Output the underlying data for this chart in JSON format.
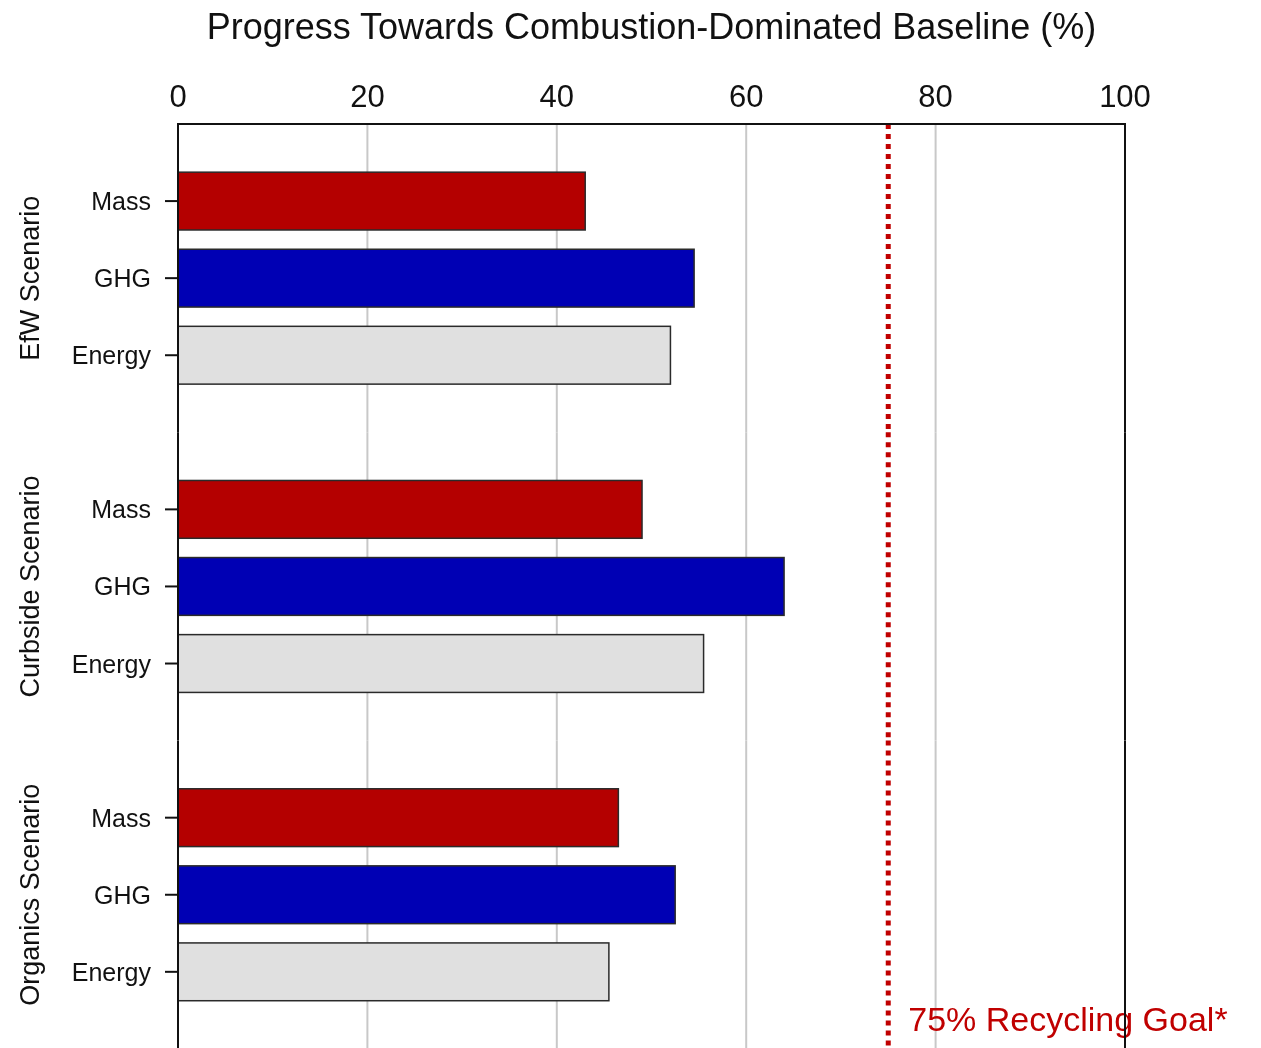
{
  "chart_data": [
    {
      "type": "bar",
      "orientation": "horizontal",
      "xlabel": "Progress Towards Combustion-Dominated Baseline (%)",
      "ylabel": "EfW Scenario",
      "categories": [
        "Mass",
        "GHG",
        "Energy"
      ],
      "values": [
        43,
        54.5,
        52
      ],
      "colors": [
        "#b40000",
        "#0000b4",
        "#e0e0e0"
      ],
      "xlim": [
        0,
        100
      ],
      "xticks": [
        0,
        20,
        40,
        60,
        80,
        100
      ],
      "grid": "x",
      "ref_lines": [
        {
          "axis": "x",
          "value": 75,
          "color": "#c00000",
          "line_style": "dotted"
        }
      ]
    },
    {
      "type": "bar",
      "orientation": "horizontal",
      "ylabel": "Curbside Scenario",
      "categories": [
        "Mass",
        "GHG",
        "Energy"
      ],
      "values": [
        49,
        64,
        55.5
      ],
      "colors": [
        "#b40000",
        "#0000b4",
        "#e0e0e0"
      ],
      "xlim": [
        0,
        100
      ],
      "xticks": [
        0,
        20,
        40,
        60,
        80,
        100
      ],
      "grid": "x",
      "tick_labels": "y",
      "ref_lines": [
        {
          "axis": "x",
          "value": 75,
          "color": "#c00000",
          "line_style": "dotted"
        }
      ]
    },
    {
      "type": "bar",
      "orientation": "horizontal",
      "ylabel": "Organics Scenario",
      "categories": [
        "Mass",
        "GHG",
        "Energy"
      ],
      "values": [
        46.5,
        52.5,
        45.5
      ],
      "colors": [
        "#b40000",
        "#0000b4",
        "#e0e0e0"
      ],
      "xlim": [
        0,
        100
      ],
      "xticks": [
        0,
        20,
        40,
        60,
        80,
        100
      ],
      "grid": "x",
      "tick_labels": "y",
      "ref_lines": [
        {
          "axis": "x",
          "value": 75,
          "label": "75% Recycling Goal*",
          "color": "#c00000",
          "line_style": "dotted"
        }
      ]
    }
  ]
}
